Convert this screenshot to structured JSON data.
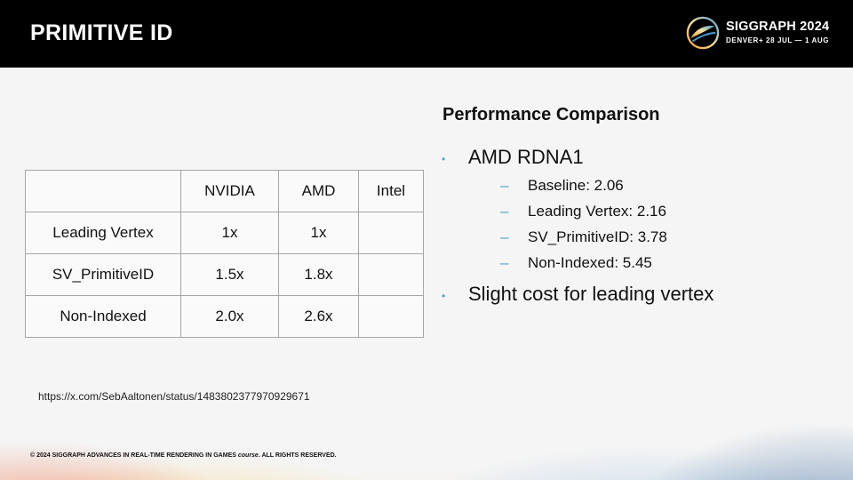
{
  "slide": {
    "title": "PRIMITIVE ID"
  },
  "brand": {
    "name": "SIGGRAPH 2024",
    "subtitle": "DENVER+ 28 JUL — 1 AUG",
    "logo_icon": "siggraph-swirl-icon"
  },
  "table": {
    "headers": [
      "",
      "NVIDIA",
      "AMD",
      "Intel"
    ],
    "rows": [
      {
        "label": "Leading Vertex",
        "nvidia": "1x",
        "amd": "1x",
        "intel": ""
      },
      {
        "label": "SV_PrimitiveID",
        "nvidia": "1.5x",
        "amd": "1.8x",
        "intel": ""
      },
      {
        "label": "Non-Indexed",
        "nvidia": "2.0x",
        "amd": "2.6x",
        "intel": ""
      }
    ]
  },
  "comparison": {
    "heading": "Performance Comparison",
    "bullets": [
      {
        "text": "AMD RDNA1",
        "sub": [
          "Baseline: 2.06",
          "Leading Vertex: 2.16",
          "SV_PrimitiveID: 3.78",
          "Non-Indexed: 5.45"
        ]
      },
      {
        "text": "Slight cost for leading vertex",
        "sub": []
      }
    ],
    "bullet_color": "#4aa3c8"
  },
  "source_url": "https://x.com/SebAaltonen/status/1483802377970929671",
  "footer": {
    "copyright_prefix": "© 2024 SIGGRAPH ADVANCES IN REAL-TIME RENDERING IN GAMES",
    "copyright_italic": "course",
    "copyright_suffix": ". ALL RIGHTS RESERVED."
  }
}
